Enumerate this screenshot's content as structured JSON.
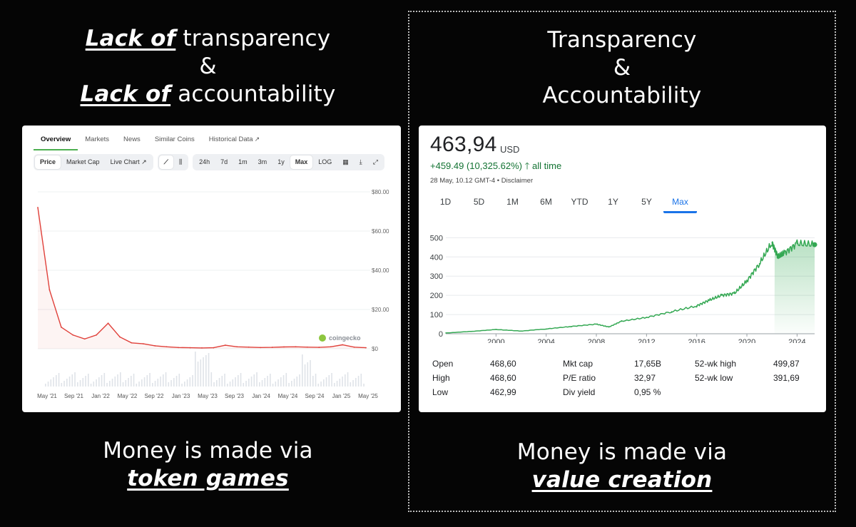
{
  "left": {
    "headline_top": {
      "line1_em": "Lack of",
      "line1_rest": " transparency",
      "line2": "&",
      "line3_em": "Lack of",
      "line3_rest": " accountability"
    },
    "headline_bottom": {
      "line1": "Money is made via",
      "line2_em": "token games"
    },
    "tabs": [
      "Overview",
      "Markets",
      "News",
      "Similar Coins",
      "Historical Data"
    ],
    "toolbar": {
      "view": [
        "Price",
        "Market Cap",
        "Live Chart"
      ],
      "ranges": [
        "24h",
        "7d",
        "1m",
        "3m",
        "1y",
        "Max",
        "LOG"
      ]
    },
    "watermark": "coingecko"
  },
  "right": {
    "headline_top": {
      "line1": "Transparency",
      "line2": "&",
      "line3": "Accountability"
    },
    "headline_bottom": {
      "line1": "Money is made via",
      "line2_em": "value creation"
    },
    "price": "463,94",
    "currency": "USD",
    "change": "+459.49 (10,325.62%)",
    "change_arrow": "🡑",
    "change_period": "all time",
    "date_line": "28 May, 10.12 GMT-4 • Disclaimer",
    "ranges": [
      "1D",
      "5D",
      "1M",
      "6M",
      "YTD",
      "1Y",
      "5Y",
      "Max"
    ],
    "stats": [
      {
        "label": "Open",
        "value": "468,60"
      },
      {
        "label": "High",
        "value": "468,60"
      },
      {
        "label": "Low",
        "value": "462,99"
      },
      {
        "label": "Mkt cap",
        "value": "17,65B"
      },
      {
        "label": "P/E ratio",
        "value": "32,97"
      },
      {
        "label": "Div yield",
        "value": "0,95 %"
      },
      {
        "label": "52-wk high",
        "value": "499,87"
      },
      {
        "label": "52-wk low",
        "value": "391,69"
      }
    ]
  },
  "colors": {
    "token_line": "#e0403a",
    "stock_line": "#34a853",
    "accent_blue": "#1a73e8",
    "change_green": "#137333"
  },
  "chart_data": [
    {
      "type": "line",
      "title": "",
      "x": [
        "May '21",
        "Jun '21",
        "Jul '21",
        "Aug '21",
        "Sep '21",
        "Oct '21",
        "Nov '21",
        "Dec '21",
        "Jan '22",
        "Mar '22",
        "May '22",
        "Jul '22",
        "Sep '22",
        "Nov '22",
        "Jan '23",
        "Mar '23",
        "May '23",
        "Jul '23",
        "Sep '23",
        "Nov '23",
        "Jan '24",
        "Mar '24",
        "May '24",
        "Jul '24",
        "Sep '24",
        "Nov '24",
        "Jan '25",
        "Mar '25",
        "May '25"
      ],
      "series": [
        {
          "values": [
            72,
            30,
            11,
            7,
            5,
            7,
            13,
            6,
            3,
            2.5,
            1.5,
            1,
            0.6,
            0.5,
            0.4,
            0.5,
            1.8,
            1.0,
            0.8,
            0.6,
            0.7,
            0.9,
            1.0,
            0.8,
            0.7,
            1.0,
            2.0,
            0.8,
            0.5
          ]
        }
      ],
      "x_tick_labels": [
        "May '21",
        "Sep '21",
        "Jan '22",
        "May '22",
        "Sep '22",
        "Jan '23",
        "May '23",
        "Sep '23",
        "Jan '24",
        "May '24",
        "Sep '24",
        "Jan '25",
        "May '25"
      ],
      "y_tick_labels": [
        "$80.00",
        "$60.00",
        "$40.00",
        "$20.00",
        "$0"
      ],
      "ylim": [
        0,
        80
      ],
      "y_axis_side": "right",
      "grid": true,
      "volume_bars": true
    },
    {
      "type": "area",
      "title": "",
      "x": [
        1996,
        1998,
        2000,
        2002,
        2004,
        2006,
        2008,
        2009,
        2010,
        2012,
        2014,
        2016,
        2017,
        2018,
        2019,
        2020,
        2021,
        2022,
        2022.5,
        2023,
        2024,
        2025.4
      ],
      "series": [
        {
          "values": [
            4,
            12,
            22,
            14,
            25,
            38,
            50,
            35,
            65,
            85,
            115,
            145,
            175,
            200,
            210,
            275,
            365,
            475,
            400,
            420,
            470,
            464
          ]
        }
      ],
      "x_tick_labels": [
        "2000",
        "2004",
        "2008",
        "2012",
        "2016",
        "2020",
        "2024"
      ],
      "y_tick_labels": [
        "500",
        "400",
        "300",
        "200",
        "100",
        "0"
      ],
      "ylim": [
        0,
        520
      ],
      "grid": true,
      "shaded_recent": true
    }
  ]
}
